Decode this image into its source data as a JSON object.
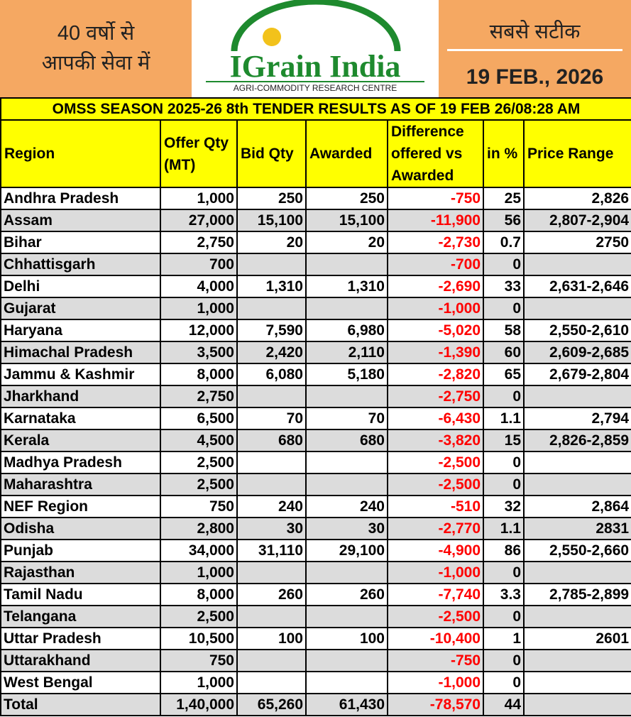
{
  "header": {
    "left_text": [
      "40 वर्षो से",
      "आपकी सेवा में"
    ],
    "logo_title": "IGrain India",
    "logo_subtitle": "AGRI-COMMODITY RESEARCH CENTRE",
    "right_text": "सबसे सटीक",
    "date": "19 FEB., 2026"
  },
  "table": {
    "title": "OMSS SEASON 2025-26 8th TENDER RESULTS AS OF 19 FEB 26/08:28 AM",
    "columns": [
      "Region",
      "Offer Qty (MT)",
      "Bid Qty",
      "Awarded",
      "Difference offered vs Awarded",
      "in %",
      "Price Range"
    ],
    "rows": [
      [
        "Andhra Pradesh",
        "1,000",
        "250",
        "250",
        "-750",
        "25",
        "2,826"
      ],
      [
        "Assam",
        "27,000",
        "15,100",
        "15,100",
        "-11,900",
        "56",
        "2,807-2,904"
      ],
      [
        "Bihar",
        "2,750",
        "20",
        "20",
        "-2,730",
        "0.7",
        "2750"
      ],
      [
        "Chhattisgarh",
        "700",
        null,
        null,
        "-700",
        "0",
        null
      ],
      [
        "Delhi",
        "4,000",
        "1,310",
        "1,310",
        "-2,690",
        "33",
        "2,631-2,646"
      ],
      [
        "Gujarat",
        "1,000",
        null,
        null,
        "-1,000",
        "0",
        null
      ],
      [
        "Haryana",
        "12,000",
        "7,590",
        "6,980",
        "-5,020",
        "58",
        "2,550-2,610"
      ],
      [
        "Himachal Pradesh",
        "3,500",
        "2,420",
        "2,110",
        "-1,390",
        "60",
        "2,609-2,685"
      ],
      [
        "Jammu & Kashmir",
        "8,000",
        "6,080",
        "5,180",
        "-2,820",
        "65",
        "2,679-2,804"
      ],
      [
        "Jharkhand",
        "2,750",
        null,
        null,
        "-2,750",
        "0",
        null
      ],
      [
        "Karnataka",
        "6,500",
        "70",
        "70",
        "-6,430",
        "1.1",
        "2,794"
      ],
      [
        "Kerala",
        "4,500",
        "680",
        "680",
        "-3,820",
        "15",
        "2,826-2,859"
      ],
      [
        "Madhya Pradesh",
        "2,500",
        null,
        null,
        "-2,500",
        "0",
        null
      ],
      [
        "Maharashtra",
        "2,500",
        null,
        null,
        "-2,500",
        "0",
        null
      ],
      [
        "NEF Region",
        "750",
        "240",
        "240",
        "-510",
        "32",
        "2,864"
      ],
      [
        "Odisha",
        "2,800",
        "30",
        "30",
        "-2,770",
        "1.1",
        "2831"
      ],
      [
        "Punjab",
        "34,000",
        "31,110",
        "29,100",
        "-4,900",
        "86",
        "2,550-2,660"
      ],
      [
        "Rajasthan",
        "1,000",
        null,
        null,
        "-1,000",
        "0",
        null
      ],
      [
        "Tamil Nadu",
        "8,000",
        "260",
        "260",
        "-7,740",
        "3.3",
        "2,785-2,899"
      ],
      [
        "Telangana",
        "2,500",
        null,
        null,
        "-2,500",
        "0",
        null
      ],
      [
        "Uttar Pradesh",
        "10,500",
        "100",
        "100",
        "-10,400",
        "1",
        "2601"
      ],
      [
        "Uttarakhand",
        "750",
        null,
        null,
        "-750",
        "0",
        null
      ],
      [
        "West Bengal",
        "1,000",
        null,
        null,
        "-1,000",
        "0",
        null
      ]
    ],
    "total": [
      "Total",
      "1,40,000",
      "65,260",
      "61,430",
      "-78,570",
      "44",
      null
    ]
  }
}
